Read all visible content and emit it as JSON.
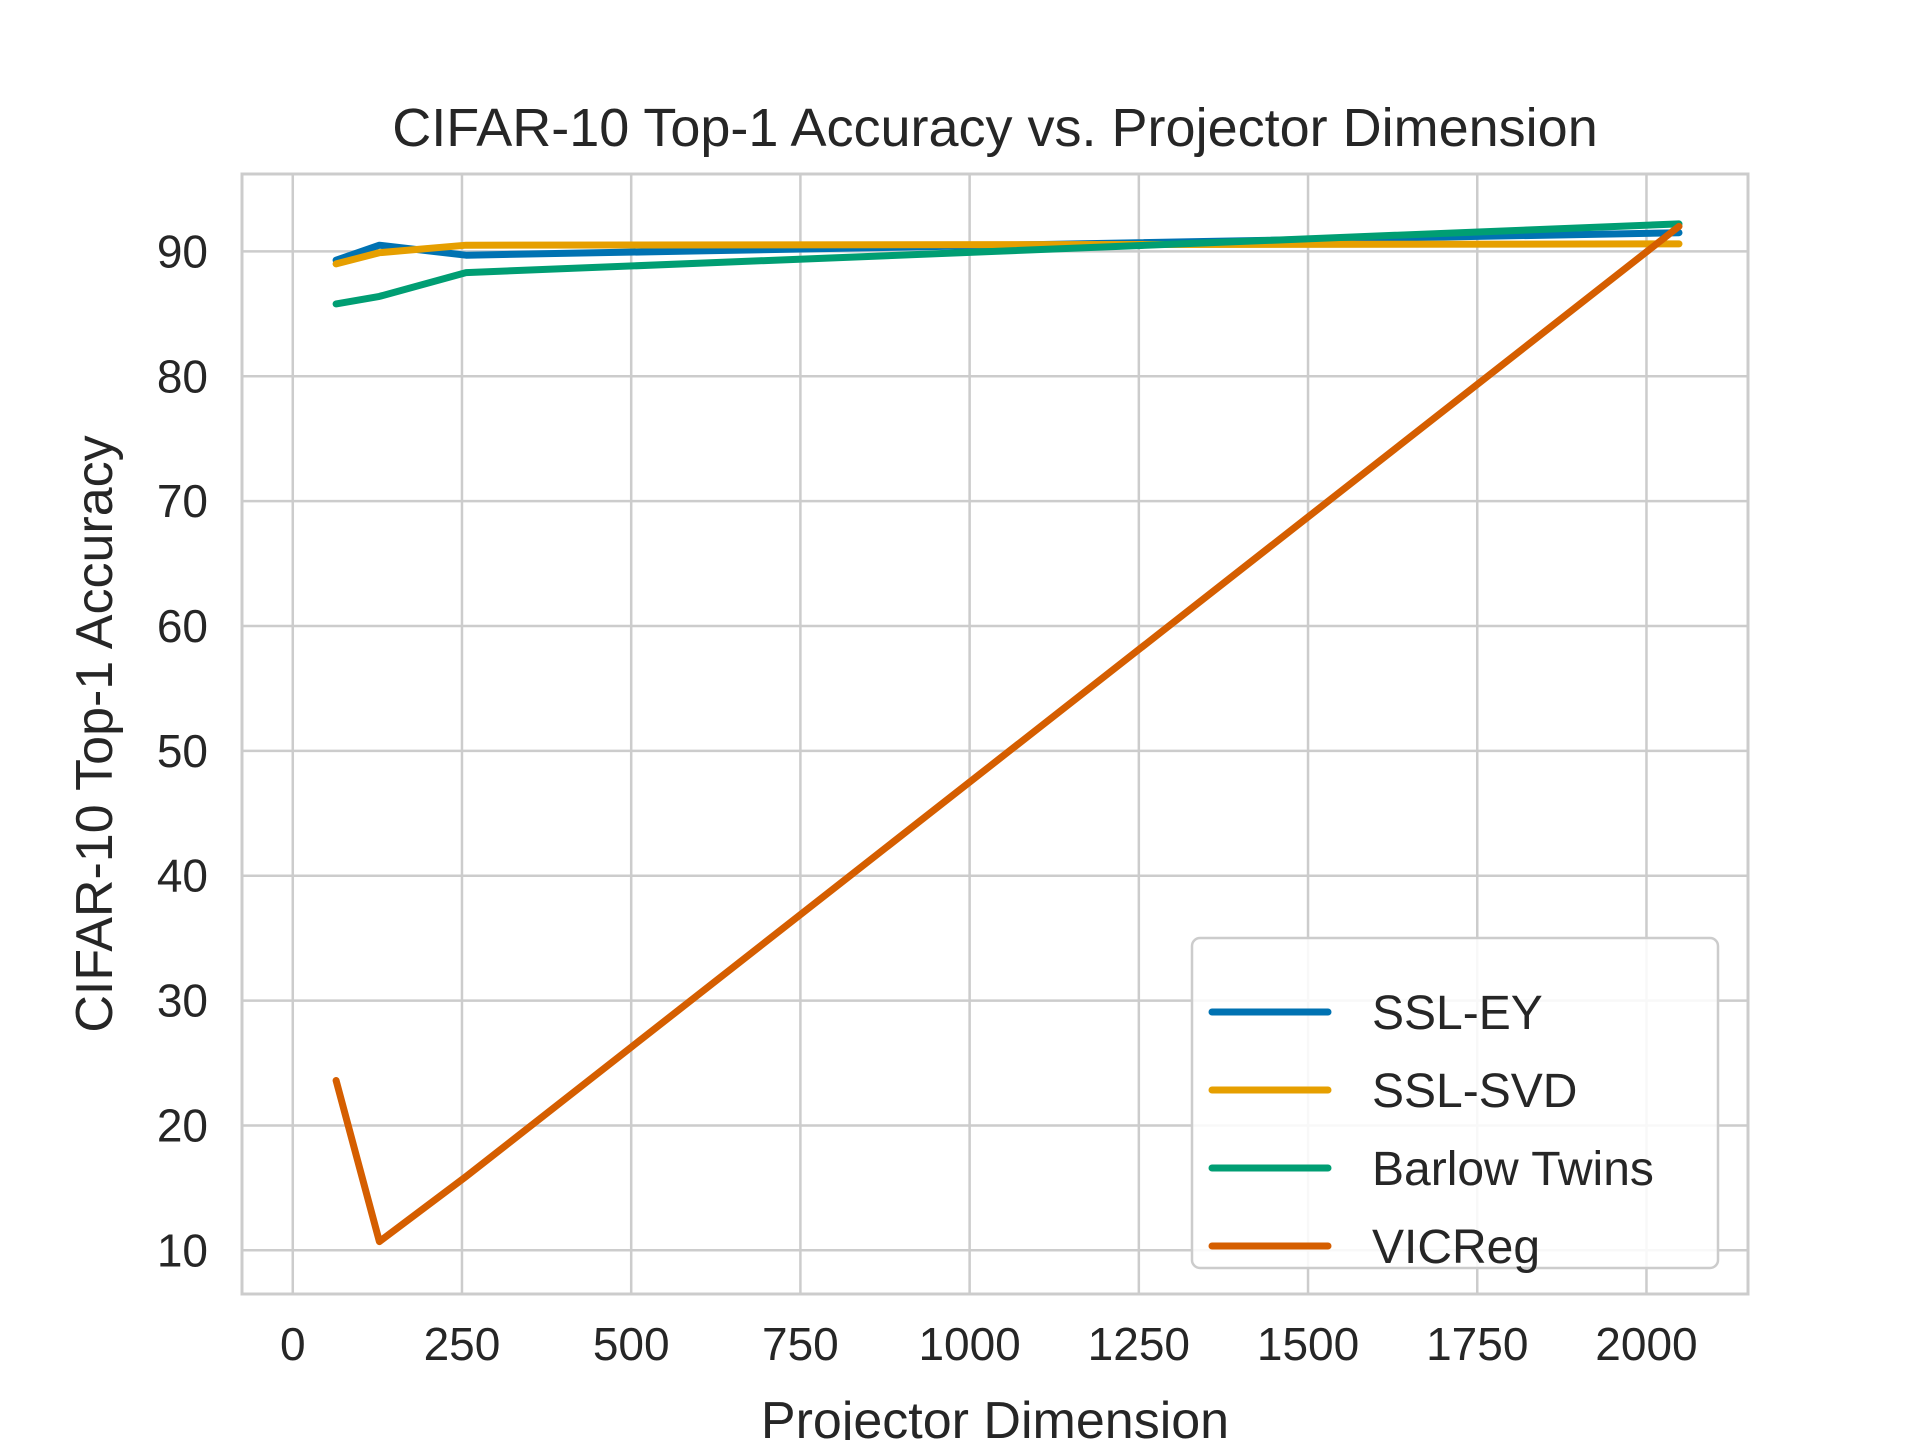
{
  "chart_data": {
    "type": "line",
    "title": "CIFAR-10 Top-1 Accuracy vs. Projector Dimension",
    "xlabel": "Projector Dimension",
    "ylabel": "CIFAR-10 Top-1 Accuracy",
    "xlim": [
      -75,
      2150
    ],
    "ylim": [
      6.5,
      96.2
    ],
    "xticks": [
      0,
      250,
      500,
      750,
      1000,
      1250,
      1500,
      1750,
      2000
    ],
    "yticks": [
      10,
      20,
      30,
      40,
      50,
      60,
      70,
      80,
      90
    ],
    "grid": true,
    "legend_position": "lower-right",
    "x": [
      64,
      128,
      256,
      2048
    ],
    "series": [
      {
        "name": "SSL-EY",
        "color": "#0072b2",
        "values": [
          89.3,
          90.5,
          89.7,
          91.5
        ]
      },
      {
        "name": "SSL-SVD",
        "color": "#e69f00",
        "values": [
          89.0,
          89.9,
          90.5,
          90.6
        ]
      },
      {
        "name": "Barlow Twins",
        "color": "#009e73",
        "values": [
          85.8,
          86.4,
          88.3,
          92.2
        ]
      },
      {
        "name": "VICReg",
        "color": "#d55e00",
        "values": [
          23.6,
          10.7,
          15.9,
          92.0
        ]
      }
    ]
  }
}
